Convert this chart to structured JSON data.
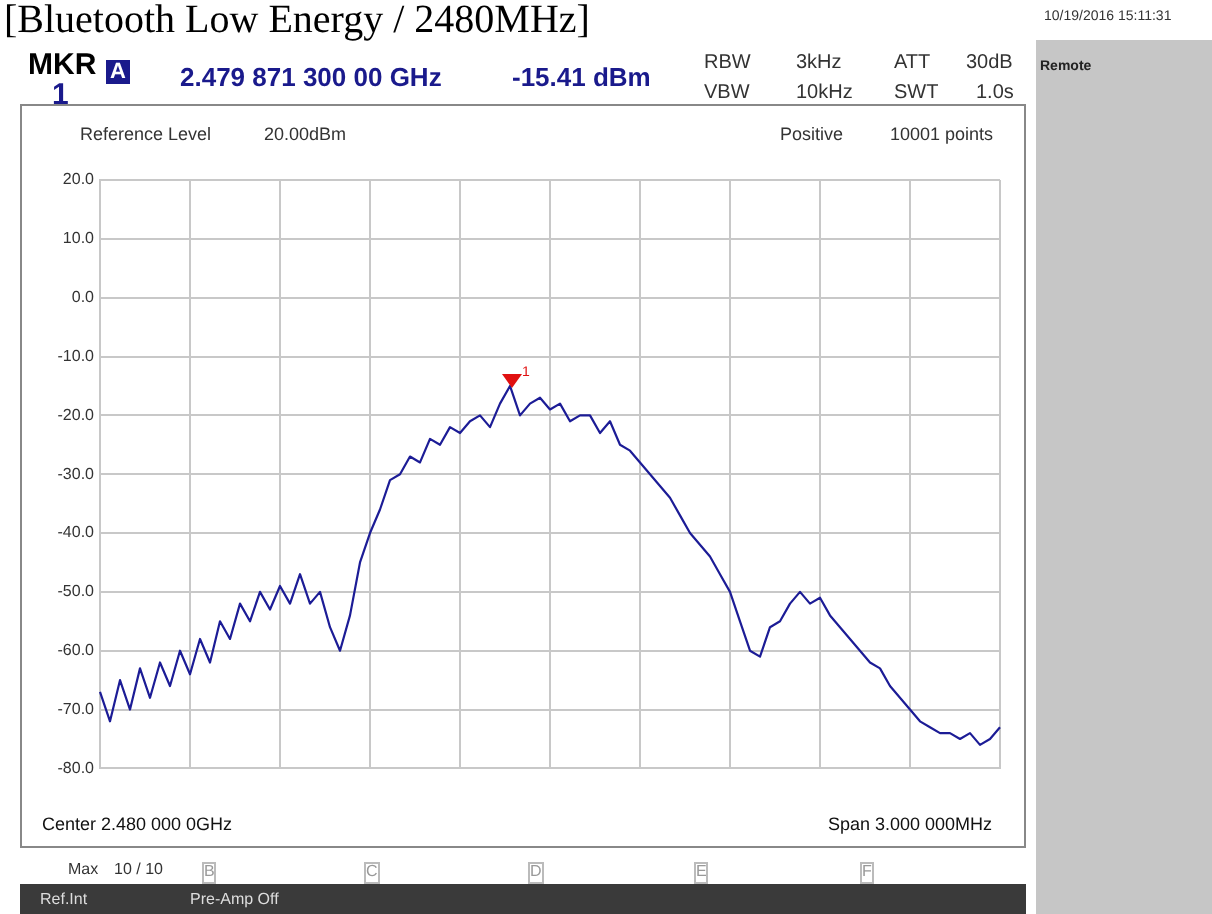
{
  "chart_data": {
    "type": "line",
    "title": "[Bluetooth Low Energy / 2480MHz]",
    "categories": [
      null,
      null,
      null,
      null,
      null,
      null,
      null,
      null,
      null,
      null,
      null,
      null,
      null,
      null,
      null,
      null,
      null,
      null,
      null,
      null,
      null,
      null,
      null,
      null,
      null,
      null,
      null,
      null,
      null,
      null,
      null,
      null,
      null,
      null,
      null,
      null,
      null,
      null,
      null,
      null,
      null,
      null,
      null,
      null,
      null,
      null,
      null,
      null,
      null,
      null,
      null,
      null,
      null,
      null,
      null,
      null,
      null,
      null,
      null,
      null,
      null,
      null,
      null,
      null,
      null,
      null,
      null,
      null,
      null,
      null,
      null,
      null,
      null,
      null,
      null,
      null,
      null,
      null,
      null,
      null,
      null,
      null,
      null,
      null,
      null,
      null,
      null,
      null,
      null,
      null,
      null
    ],
    "series": [
      {
        "color": "#1c1c96",
        "values": [
          -67,
          -72,
          -65,
          -70,
          -63,
          -68,
          -62,
          -66,
          -60,
          -64,
          -58,
          -62,
          -55,
          -58,
          -52,
          -55,
          -50,
          -53,
          -49,
          -52,
          -47,
          -52,
          -50,
          -56,
          -60,
          -54,
          -45,
          -40,
          -36,
          -31,
          -30,
          -27,
          -28,
          -24,
          -25,
          -22,
          -23,
          -21,
          -20,
          -22,
          -18,
          -15,
          -20,
          -18,
          -17,
          -19,
          -18,
          -21,
          -20,
          -20,
          -23,
          -21,
          -25,
          -26,
          -28,
          -30,
          -32,
          -34,
          -37,
          -40,
          -42,
          -44,
          -47,
          -50,
          -55,
          -60,
          -61,
          -56,
          -55,
          -52,
          -50,
          -52,
          -51,
          -54,
          -56,
          -58,
          -60,
          -62,
          -63,
          -66,
          -68,
          -70,
          -72,
          -73,
          -74,
          -74,
          -75,
          -74,
          -76,
          -75,
          -73
        ]
      }
    ],
    "ylim": [
      -80,
      20
    ],
    "yticks": [
      {
        "value": 20,
        "label": "20.0"
      },
      {
        "value": 10,
        "label": "10.0"
      },
      {
        "value": 0,
        "label": "0.0"
      },
      {
        "value": -10,
        "label": "-10.0"
      },
      {
        "value": -20,
        "label": "-20.0"
      },
      {
        "value": -30,
        "label": "-30.0"
      },
      {
        "value": -40,
        "label": "-40.0"
      },
      {
        "value": -50,
        "label": "-50.0"
      },
      {
        "value": -60,
        "label": "-60.0"
      },
      {
        "value": -70,
        "label": "-70.0"
      },
      {
        "value": -80,
        "label": "-80.0"
      }
    ],
    "tick_labels": "y",
    "grid": true,
    "legend": false,
    "marker": "none",
    "line_style": "solid",
    "annotations": [
      "1",
      "MKR",
      "1",
      "A",
      "2.479 871 300 00 GHz",
      "-15.41 dBm",
      "RBW",
      "3kHz",
      "VBW",
      "10kHz",
      "ATT",
      "30dB",
      "SWT",
      "1.0s",
      "Reference Level",
      "20.00dBm",
      "Positive",
      "10001 points",
      "Center 2.480 000 0GHz",
      "Span 3.000 000MHz",
      "Max",
      "10 / 10",
      "B",
      "C",
      "D",
      "E",
      "F",
      "Ref.Int",
      "Pre-Amp Off",
      "10/19/2016 15:11:31",
      "Remote"
    ]
  }
}
